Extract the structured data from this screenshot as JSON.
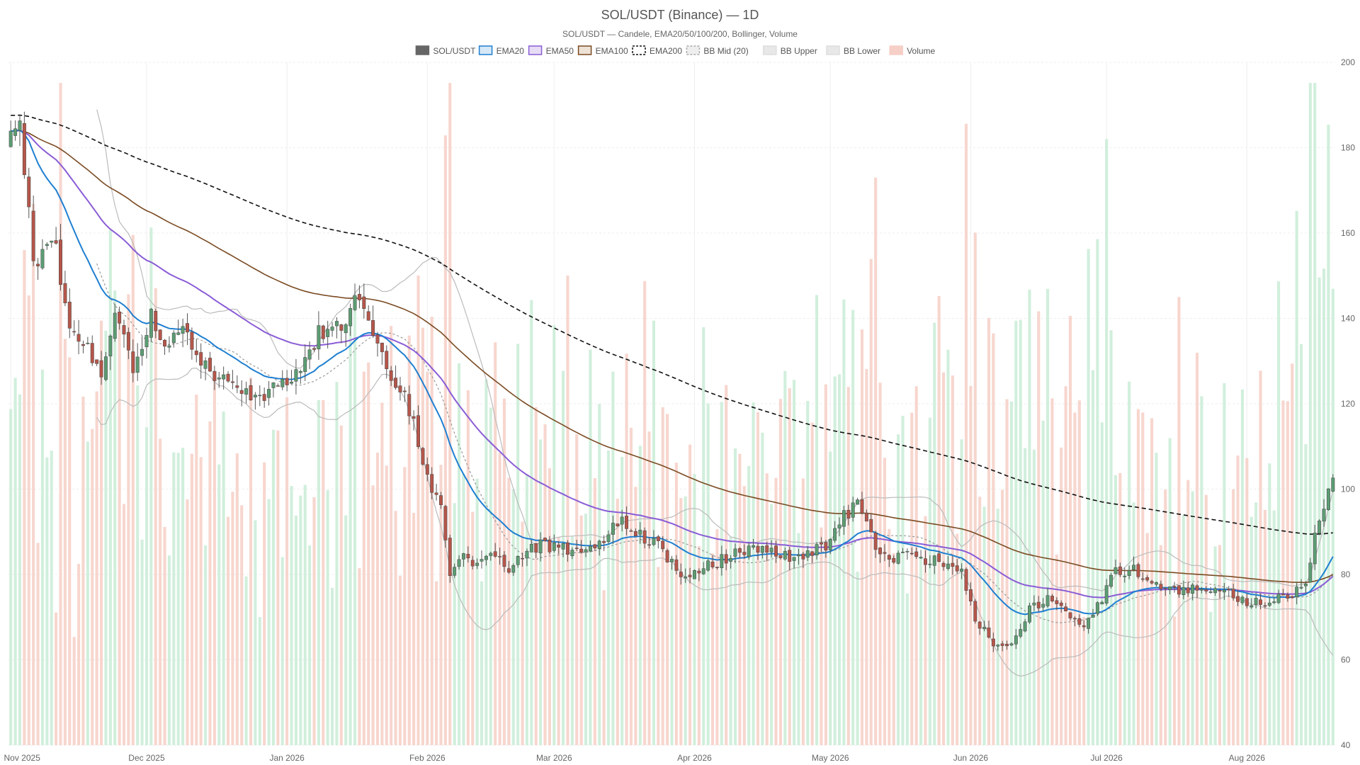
{
  "chart_data": {
    "type": "candlestick",
    "title": "SOL/USDT (Binance) — 1D",
    "subtitle": "SOL/USDT — Candele, EMA20/50/100/200, Bollinger, Volume",
    "ylim": [
      40,
      200
    ],
    "y_ticks": [
      40,
      60,
      80,
      100,
      120,
      140,
      160,
      180,
      200
    ],
    "y_axis_side": "right",
    "x_range": [
      "2025-11-01",
      "2026-08-20"
    ],
    "x_ticks": [
      {
        "date": "2025-11-01",
        "label": "Nov 2025"
      },
      {
        "date": "2025-12-01",
        "label": "Dec 2025"
      },
      {
        "date": "2026-01-01",
        "label": "Jan 2026"
      },
      {
        "date": "2026-02-01",
        "label": "Feb 2026"
      },
      {
        "date": "2026-03-01",
        "label": "Mar 2026"
      },
      {
        "date": "2026-04-01",
        "label": "Apr 2026"
      },
      {
        "date": "2026-05-01",
        "label": "May 2026"
      },
      {
        "date": "2026-06-01",
        "label": "Jun 2026"
      },
      {
        "date": "2026-07-01",
        "label": "Jul 2026"
      },
      {
        "date": "2026-08-01",
        "label": "Aug 2026"
      }
    ],
    "grid": true,
    "legend_position": "top-center",
    "legend": [
      {
        "name": "SOL/USDT",
        "swatch": "solid",
        "color": "#666666",
        "fill": "#666666"
      },
      {
        "name": "EMA20",
        "swatch": "solid",
        "color": "#1f7fd1",
        "fill": "#d6e8f7"
      },
      {
        "name": "EMA50",
        "swatch": "solid",
        "color": "#8a5cd6",
        "fill": "#e6dcf5"
      },
      {
        "name": "EMA100",
        "swatch": "solid",
        "color": "#7a4a22",
        "fill": "#eee2d6"
      },
      {
        "name": "EMA200",
        "swatch": "dashed",
        "color": "#111111",
        "fill": "#ffffff"
      },
      {
        "name": "BB Mid (20)",
        "swatch": "dashed",
        "color": "#aaaaaa",
        "fill": "#eeeeee"
      },
      {
        "name": "BB Upper",
        "swatch": "solid",
        "color": "#dddddd",
        "fill": "#e8e8e8"
      },
      {
        "name": "BB Lower",
        "swatch": "solid",
        "color": "#dddddd",
        "fill": "#e8e8e8"
      },
      {
        "name": "Volume",
        "swatch": "solid",
        "color": "#f6cfc6",
        "fill": "#f6cfc6"
      }
    ],
    "colors": {
      "up": "#5c9c72",
      "down": "#b5564a",
      "wick": "#555555",
      "volume_up": "#c9ecd6",
      "volume_down": "#f6cfc6",
      "ema20": "#1f7fd1",
      "ema50": "#8a5cd6",
      "ema100": "#7a4a22",
      "ema200": "#111111",
      "bb_band": "#bbbbbb",
      "bb_mid": "#999999",
      "grid": "#eeeeee"
    },
    "price_anchors": [
      [
        "2025-11-01",
        186
      ],
      [
        "2025-11-03",
        186
      ],
      [
        "2025-11-06",
        152
      ],
      [
        "2025-11-10",
        160
      ],
      [
        "2025-11-14",
        140
      ],
      [
        "2025-11-18",
        132
      ],
      [
        "2025-11-21",
        128
      ],
      [
        "2025-11-24",
        140
      ],
      [
        "2025-11-28",
        128
      ],
      [
        "2025-12-02",
        141
      ],
      [
        "2025-12-05",
        133
      ],
      [
        "2025-12-09",
        136
      ],
      [
        "2025-12-13",
        130
      ],
      [
        "2025-12-17",
        126
      ],
      [
        "2025-12-21",
        124
      ],
      [
        "2025-12-26",
        122
      ],
      [
        "2025-12-31",
        125
      ],
      [
        "2026-01-04",
        128
      ],
      [
        "2026-01-08",
        136
      ],
      [
        "2026-01-12",
        137
      ],
      [
        "2026-01-16",
        145
      ],
      [
        "2026-01-20",
        136
      ],
      [
        "2026-01-24",
        127
      ],
      [
        "2026-01-28",
        119
      ],
      [
        "2026-02-01",
        102
      ],
      [
        "2026-02-04",
        96
      ],
      [
        "2026-02-06",
        80
      ],
      [
        "2026-02-09",
        84
      ],
      [
        "2026-02-12",
        82
      ],
      [
        "2026-02-15",
        86
      ],
      [
        "2026-02-19",
        80
      ],
      [
        "2026-02-23",
        86
      ],
      [
        "2026-02-27",
        87
      ],
      [
        "2026-03-03",
        86
      ],
      [
        "2026-03-08",
        85
      ],
      [
        "2026-03-12",
        88
      ],
      [
        "2026-03-16",
        93
      ],
      [
        "2026-03-20",
        89
      ],
      [
        "2026-03-24",
        87
      ],
      [
        "2026-03-28",
        81
      ],
      [
        "2026-04-01",
        80
      ],
      [
        "2026-04-06",
        83
      ],
      [
        "2026-04-10",
        85
      ],
      [
        "2026-04-14",
        86
      ],
      [
        "2026-04-18",
        86
      ],
      [
        "2026-04-22",
        84
      ],
      [
        "2026-04-26",
        85
      ],
      [
        "2026-04-30",
        87
      ],
      [
        "2026-05-04",
        94
      ],
      [
        "2026-05-07",
        96
      ],
      [
        "2026-05-11",
        87
      ],
      [
        "2026-05-15",
        84
      ],
      [
        "2026-05-19",
        85
      ],
      [
        "2026-05-23",
        83
      ],
      [
        "2026-05-27",
        83
      ],
      [
        "2026-05-30",
        80
      ],
      [
        "2026-06-02",
        70
      ],
      [
        "2026-06-06",
        64
      ],
      [
        "2026-06-10",
        64
      ],
      [
        "2026-06-14",
        72
      ],
      [
        "2026-06-18",
        74
      ],
      [
        "2026-06-22",
        72
      ],
      [
        "2026-06-26",
        68
      ],
      [
        "2026-06-30",
        74
      ],
      [
        "2026-07-03",
        81
      ],
      [
        "2026-07-07",
        81
      ],
      [
        "2026-07-11",
        78
      ],
      [
        "2026-07-15",
        77
      ],
      [
        "2026-07-19",
        76
      ],
      [
        "2026-07-23",
        77
      ],
      [
        "2026-07-27",
        76
      ],
      [
        "2026-07-31",
        74
      ],
      [
        "2026-08-04",
        73
      ],
      [
        "2026-08-08",
        75
      ],
      [
        "2026-08-12",
        76
      ],
      [
        "2026-08-14",
        77
      ],
      [
        "2026-08-16",
        89
      ],
      [
        "2026-08-18",
        96
      ],
      [
        "2026-08-20",
        102
      ]
    ]
  }
}
